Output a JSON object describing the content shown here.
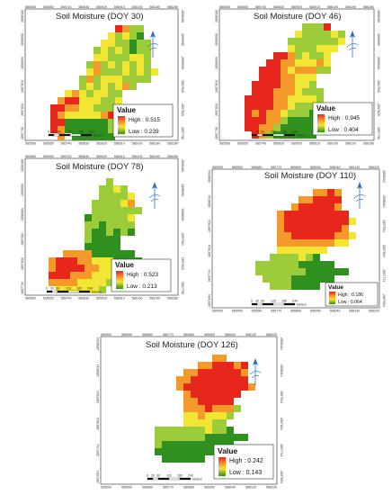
{
  "maps": [
    {
      "id": "doy30",
      "title": "Soil Moisture (DOY 30)",
      "legend": {
        "heading": "Value",
        "high": "High : 0.515",
        "low": "Low : 0.239"
      },
      "scale": {
        "labels": [
          "0",
          "30",
          "60",
          "120",
          "180",
          "240"
        ],
        "unit": "Meters"
      },
      "x_ticks": [
        "585560",
        "585650",
        "585740",
        "585830",
        "585920",
        "586010",
        "586100",
        "586190",
        "586280"
      ],
      "y_ticks": [
        "2897730",
        "2897820",
        "2897910",
        "2898000",
        "2898090",
        "2898180"
      ],
      "wetness_range": [
        0.239,
        0.515
      ]
    },
    {
      "id": "doy46",
      "title": "Soil Moisture (DOY 46)",
      "legend": {
        "heading": "Value",
        "high": "High : 0.945",
        "low": "Low : 0.404"
      },
      "scale": {
        "labels": [
          "0",
          "30",
          "60",
          "120",
          "180",
          "240"
        ],
        "unit": "Meters"
      },
      "x_ticks": [
        "585560",
        "585650",
        "585740",
        "585830",
        "585920",
        "586010",
        "586100",
        "586190",
        "586280"
      ],
      "y_ticks": [
        "2897730",
        "2897820",
        "2897910",
        "2898000",
        "2898090",
        "2898180"
      ],
      "wetness_range": [
        0.404,
        0.945
      ]
    },
    {
      "id": "doy78",
      "title": "Soil Moisture (DOY 78)",
      "legend": {
        "heading": "Value",
        "high": "High : 0.523",
        "low": "Low : 0.213"
      },
      "scale": {
        "labels": [
          "0",
          "30",
          "60",
          "120",
          "180",
          "240"
        ],
        "unit": "Meters"
      },
      "x_ticks": [
        "585560",
        "585650",
        "585740",
        "585830",
        "585920",
        "586010",
        "586100",
        "586190",
        "586280"
      ],
      "y_ticks": [
        "2897730",
        "2897820",
        "2897910",
        "2898000",
        "2898090",
        "2898180"
      ],
      "wetness_range": [
        0.213,
        0.523
      ]
    },
    {
      "id": "doy110",
      "title": "Soil Moisture (DOY 110)",
      "legend": {
        "heading": "Value",
        "high": "High : 0.186",
        "low": "Low : 0.064"
      },
      "scale": {
        "labels": [
          "0",
          "30",
          "60",
          "120",
          "180",
          "240"
        ],
        "unit": "Meters"
      },
      "x_ticks": [
        "585500",
        "585590",
        "585680",
        "585770",
        "585860",
        "585950",
        "586040",
        "586130",
        "586220"
      ],
      "y_ticks": [
        "2897654",
        "2897744",
        "2897834",
        "2897924",
        "2898014",
        "2898104"
      ],
      "wetness_range": [
        0.064,
        0.186
      ]
    },
    {
      "id": "doy126",
      "title": "Soil Moisture (DOY 126)",
      "legend": {
        "heading": "Value",
        "high": "High : 0.242",
        "low": "Low : 0.143"
      },
      "scale": {
        "labels": [
          "0",
          "30",
          "60",
          "120",
          "180",
          "240"
        ],
        "unit": "Meters"
      },
      "x_ticks": [
        "585500",
        "585590",
        "585680",
        "585770",
        "585860",
        "585950",
        "586040",
        "586130",
        "586220"
      ],
      "y_ticks": [
        "2897654",
        "2897744",
        "2897834",
        "2897924",
        "2898014",
        "2898104"
      ],
      "wetness_range": [
        0.143,
        0.242
      ]
    }
  ],
  "colors": {
    "high": "#e8271c",
    "mid_high": "#f39a2a",
    "mid": "#f2e634",
    "mid_low": "#9ccc3a",
    "low": "#2f8f1f"
  },
  "north_arrow_icon": "north-arrow-icon"
}
